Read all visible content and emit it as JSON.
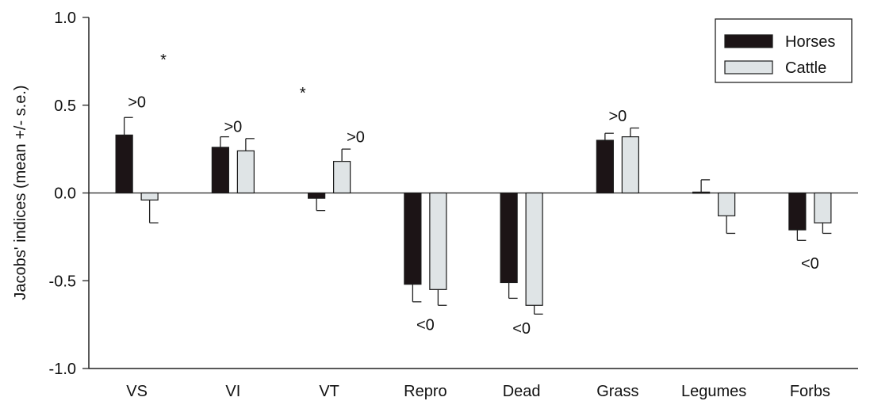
{
  "chart_data": {
    "type": "bar",
    "ylabel": "Jacobs' indices (mean +/- s.e.)",
    "xlabel": "",
    "ylim": [
      -1.0,
      1.0
    ],
    "yticks": [
      "1.0",
      "0.5",
      "0.0",
      "-0.5",
      "-1.0"
    ],
    "ytick_values": [
      1.0,
      0.5,
      0.0,
      -0.5,
      -1.0
    ],
    "categories": [
      "VS",
      "VI",
      "VT",
      "Repro",
      "Dead",
      "Grass",
      "Legumes",
      "Forbs"
    ],
    "series": [
      {
        "name": "Horses",
        "color": "#1c1416",
        "values": [
          0.33,
          0.26,
          -0.03,
          -0.52,
          -0.51,
          0.3,
          0.005,
          -0.21
        ],
        "errors": [
          0.1,
          0.06,
          0.07,
          0.1,
          0.09,
          0.04,
          0.07,
          0.06
        ]
      },
      {
        "name": "Cattle",
        "color": "#dfe4e6",
        "values": [
          -0.04,
          0.24,
          0.18,
          -0.55,
          -0.64,
          0.32,
          -0.13,
          -0.17
        ],
        "errors": [
          0.13,
          0.07,
          0.07,
          0.09,
          0.05,
          0.05,
          0.1,
          0.06
        ]
      }
    ],
    "annotations": [
      {
        "text": ">0",
        "category": "VS",
        "y": 0.52
      },
      {
        "text": "*",
        "category": "VS",
        "offset": 0.55,
        "y": 0.76
      },
      {
        "text": ">0",
        "category": "VI",
        "y": 0.38
      },
      {
        "text": "*",
        "category": "VT",
        "offset": -0.55,
        "y": 0.57
      },
      {
        "text": ">0",
        "category": "VT",
        "offset": 0.55,
        "y": 0.32
      },
      {
        "text": "<0",
        "category": "Repro",
        "y": -0.75
      },
      {
        "text": "<0",
        "category": "Dead",
        "y": -0.77
      },
      {
        "text": ">0",
        "category": "Grass",
        "y": 0.44
      },
      {
        "text": "<0",
        "category": "Forbs",
        "y": -0.4
      }
    ],
    "legend": {
      "position": "top-right"
    },
    "grid": false
  }
}
